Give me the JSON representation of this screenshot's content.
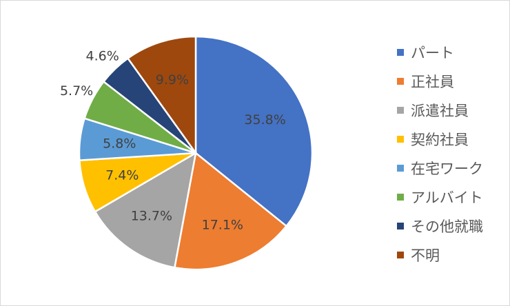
{
  "chart_data": {
    "type": "pie",
    "title": "",
    "start_angle_deg": 0,
    "direction": "clockwise",
    "legend_position": "right",
    "categories": [
      "パート",
      "正社員",
      "派遣社員",
      "契約社員",
      "在宅ワーク",
      "アルバイト",
      "その他就職",
      "不明"
    ],
    "values": [
      35.8,
      17.1,
      13.7,
      7.4,
      5.8,
      5.7,
      4.6,
      9.9
    ],
    "labels": [
      "35.8%",
      "17.1%",
      "13.7%",
      "7.4%",
      "5.8%",
      "5.7%",
      "4.6%",
      "9.9%"
    ],
    "label_placement": [
      "inside",
      "inside",
      "inside",
      "inside",
      "inside",
      "outside",
      "outside",
      "inside"
    ],
    "colors": [
      "#4472C4",
      "#ED7D31",
      "#A5A5A5",
      "#FFC000",
      "#5B9BD5",
      "#70AD47",
      "#264478",
      "#9E480E"
    ]
  }
}
